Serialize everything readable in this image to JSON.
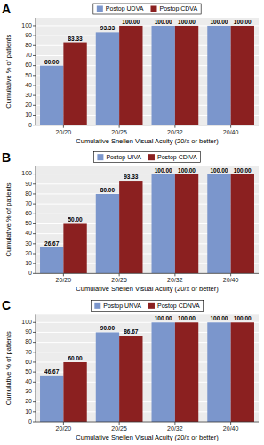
{
  "chart_data": [
    {
      "type": "bar",
      "title": "A",
      "categories": [
        "20/20",
        "20/25",
        "20/32",
        "20/40"
      ],
      "series": [
        {
          "name": "Postop UDVA",
          "color": "#7b96cc",
          "values": [
            60.0,
            93.33,
            100.0,
            100.0
          ],
          "value_labels": [
            "60.00",
            "93.33",
            "100.00",
            "100.00"
          ]
        },
        {
          "name": "Postop CDVA",
          "color": "#8b2020",
          "values": [
            83.33,
            100.0,
            100.0,
            100.0
          ],
          "value_labels": [
            "83.33",
            "100.00",
            "100.00",
            "100.00"
          ]
        }
      ],
      "xlabel": "Cumulative Snellen Visual Acuity (20/x or better)",
      "ylabel": "Cumulative % of patients",
      "ylim": [
        0,
        108
      ],
      "yticks": [
        0,
        10,
        20,
        30,
        40,
        50,
        60,
        70,
        80,
        90,
        100
      ],
      "grid": true,
      "legend": "top",
      "data_labels": true
    },
    {
      "type": "bar",
      "title": "B",
      "categories": [
        "20/20",
        "20/25",
        "20/32",
        "20/40"
      ],
      "series": [
        {
          "name": "Postop UIVA",
          "color": "#7b96cc",
          "values": [
            26.67,
            80.0,
            100.0,
            100.0
          ],
          "value_labels": [
            "26.67",
            "80.00",
            "100.00",
            "100.00"
          ]
        },
        {
          "name": "Postop CDIVA",
          "color": "#8b2020",
          "values": [
            50.0,
            93.33,
            100.0,
            100.0
          ],
          "value_labels": [
            "50.00",
            "93.33",
            "100.00",
            "100.00"
          ]
        }
      ],
      "xlabel": "Cumulative Snellen Visual Acuity (20/x or better)",
      "ylabel": "Cumulative % of patients",
      "ylim": [
        0,
        108
      ],
      "yticks": [
        0,
        10,
        20,
        30,
        40,
        50,
        60,
        70,
        80,
        90,
        100
      ],
      "grid": true,
      "legend": "top",
      "data_labels": true
    },
    {
      "type": "bar",
      "title": "C",
      "categories": [
        "20/20",
        "20/25",
        "20/32",
        "20/40"
      ],
      "series": [
        {
          "name": "Postop UNVA",
          "color": "#7b96cc",
          "values": [
            46.67,
            90.0,
            100.0,
            100.0
          ],
          "value_labels": [
            "46.67",
            "90.00",
            "100.00",
            "100.00"
          ]
        },
        {
          "name": "Postop CDNVA",
          "color": "#8b2020",
          "values": [
            60.0,
            86.67,
            100.0,
            100.0
          ],
          "value_labels": [
            "60.00",
            "86.67",
            "100.00",
            "100.00"
          ]
        }
      ],
      "xlabel": "Cumulative Snellen Visual Acuity (20/x or better)",
      "ylabel": "Cumulative % of patients",
      "ylim": [
        0,
        108
      ],
      "yticks": [
        0,
        10,
        20,
        30,
        40,
        50,
        60,
        70,
        80,
        90,
        100
      ],
      "grid": true,
      "legend": "top",
      "data_labels": true
    }
  ]
}
